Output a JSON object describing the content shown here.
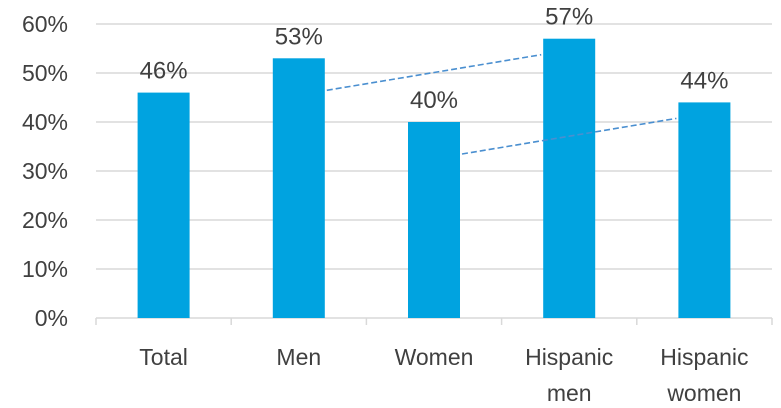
{
  "chart_data": {
    "type": "bar",
    "categories": [
      [
        "Total"
      ],
      [
        "Men"
      ],
      [
        "Women"
      ],
      [
        "Hispanic",
        "men"
      ],
      [
        "Hispanic",
        "women"
      ]
    ],
    "values": [
      46,
      53,
      40,
      57,
      44
    ],
    "value_labels": [
      "46%",
      "53%",
      "40%",
      "57%",
      "44%"
    ],
    "ylim": [
      0,
      60
    ],
    "y_ticks": [
      0,
      10,
      20,
      30,
      40,
      50,
      60
    ],
    "y_tick_labels": [
      "0%",
      "10%",
      "20%",
      "30%",
      "40%",
      "50%",
      "60%"
    ],
    "gridlines": true,
    "bar_color": "#00A3E0",
    "connectors": [
      {
        "from": "Men",
        "to": "Hispanic men"
      },
      {
        "from": "Women",
        "to": "Hispanic women"
      }
    ],
    "connector_color": "#4A8FD0"
  }
}
